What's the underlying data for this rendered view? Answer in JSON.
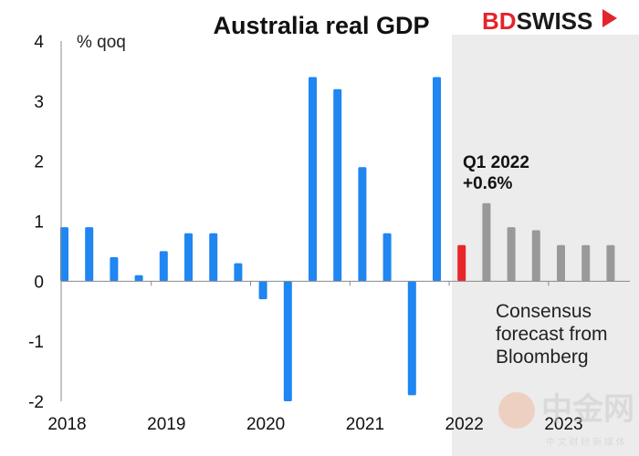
{
  "brand": {
    "part1": "BD",
    "part2": "SWISS",
    "color1": "#e4242c",
    "color2": "#1a1a1a"
  },
  "watermark": {
    "text": "中金网",
    "subtext": "中 文 财 经 新 媒 体"
  },
  "chart_data": {
    "type": "bar",
    "title": "Australia real GDP",
    "ylabel": "% qoq",
    "ylim": [
      -2,
      4
    ],
    "yticks": [
      4,
      3,
      2,
      1,
      0,
      -1,
      -2
    ],
    "x_year_labels": [
      "2018",
      "2019",
      "2020",
      "2021",
      "2022",
      "2023"
    ],
    "categories": [
      "2018 Q1",
      "2018 Q2",
      "2018 Q3",
      "2018 Q4",
      "2019 Q1",
      "2019 Q2",
      "2019 Q3",
      "2019 Q4",
      "2020 Q1",
      "2020 Q2",
      "2020 Q3",
      "2020 Q4",
      "2021 Q1",
      "2021 Q2",
      "2021 Q3",
      "2021 Q4",
      "2022 Q1",
      "2022 Q2",
      "2022 Q3",
      "2022 Q4",
      "2023 Q1",
      "2023 Q2",
      "2023 Q3"
    ],
    "series": [
      {
        "values": [
          0.9,
          0.9,
          0.4,
          0.1,
          0.5,
          0.8,
          0.8,
          0.3,
          -0.3,
          -2.0,
          3.4,
          3.2,
          1.9,
          0.8,
          -1.9,
          3.4,
          0.6,
          1.3,
          0.9,
          0.85,
          0.6,
          0.6,
          0.6
        ],
        "kinds": [
          "actual",
          "actual",
          "actual",
          "actual",
          "actual",
          "actual",
          "actual",
          "actual",
          "actual",
          "actual",
          "actual",
          "actual",
          "actual",
          "actual",
          "actual",
          "actual",
          "latest",
          "forecast",
          "forecast",
          "forecast",
          "forecast",
          "forecast",
          "forecast"
        ]
      }
    ],
    "colors": {
      "actual": "#1f86f2",
      "latest": "#e8262a",
      "forecast": "#999999",
      "forecast_region": "#ececec"
    },
    "annotations": {
      "latest_line1": "Q1 2022",
      "latest_line2": "+0.6%",
      "forecast_line1": "Consensus",
      "forecast_line2": "forecast from",
      "forecast_line3": "Bloomberg"
    },
    "grid": false
  }
}
